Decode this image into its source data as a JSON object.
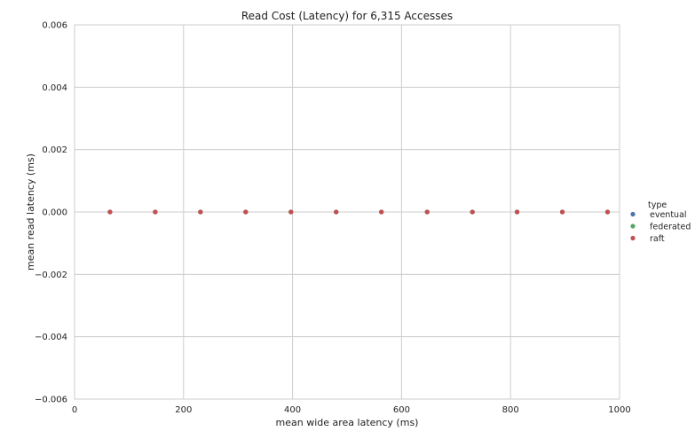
{
  "chart_data": {
    "type": "scatter",
    "title": "Read Cost (Latency) for 6,315 Accesses",
    "xlabel": "mean wide area latency (ms)",
    "ylabel": "mean read latency (ms)",
    "xlim": [
      0,
      1000
    ],
    "ylim": [
      -0.006,
      0.006
    ],
    "x_ticks": [
      0,
      200,
      400,
      600,
      800,
      1000
    ],
    "y_ticks": [
      -0.006,
      -0.004,
      -0.002,
      0.0,
      0.002,
      0.004,
      0.006
    ],
    "x_tick_labels": [
      "0",
      "200",
      "400",
      "600",
      "800",
      "1000"
    ],
    "y_tick_labels": [
      "−0.006",
      "−0.004",
      "−0.002",
      "0.000",
      "0.002",
      "0.004",
      "0.006"
    ],
    "grid": true,
    "legend_title": "type",
    "legend_placement": "right",
    "series": [
      {
        "name": "eventual",
        "color": "#4c72b0",
        "x": [
          65,
          148,
          231,
          314,
          397,
          480,
          563,
          647,
          730,
          812,
          895,
          978
        ],
        "y": [
          0,
          0,
          0,
          0,
          0,
          0,
          0,
          0,
          0,
          0,
          0,
          0
        ]
      },
      {
        "name": "federated",
        "color": "#55a868",
        "x": [
          65,
          148,
          231,
          314,
          397,
          480,
          563,
          647,
          730,
          812,
          895,
          978
        ],
        "y": [
          0,
          0,
          0,
          0,
          0,
          0,
          0,
          0,
          0,
          0,
          0,
          0
        ]
      },
      {
        "name": "raft",
        "color": "#c44e52",
        "x": [
          65,
          148,
          231,
          314,
          397,
          480,
          563,
          647,
          730,
          812,
          895,
          978
        ],
        "y": [
          0,
          0,
          0,
          0,
          0,
          0,
          0,
          0,
          0,
          0,
          0,
          0
        ]
      }
    ]
  }
}
